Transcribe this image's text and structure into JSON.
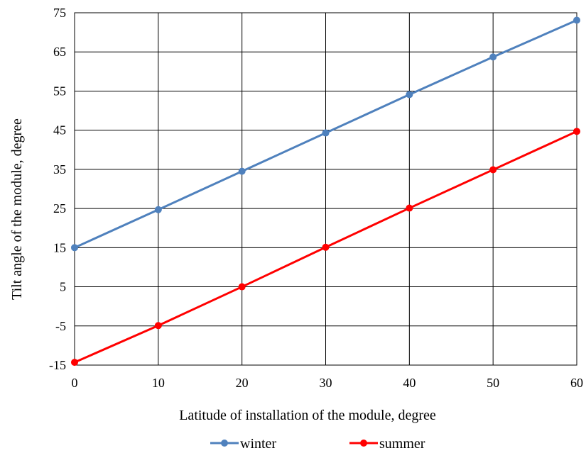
{
  "chart_data": {
    "type": "line",
    "title": "",
    "xlabel": "Latitude of installation of the module, degree",
    "ylabel": "Tilt angle of the module, degree",
    "xlim": [
      0,
      60
    ],
    "ylim": [
      -15,
      75
    ],
    "xticks": [
      "0",
      "10",
      "20",
      "30",
      "40",
      "50",
      "60"
    ],
    "yticks": [
      "-15",
      "-5",
      "5",
      "15",
      "25",
      "35",
      "45",
      "55",
      "65",
      "75"
    ],
    "grid": true,
    "legend_position": "bottom",
    "x": [
      0,
      10,
      20,
      30,
      40,
      50,
      60
    ],
    "series": [
      {
        "name": "winter",
        "color": "#4f81bd",
        "values": [
          15,
          24.7,
          34.5,
          44.3,
          54.1,
          63.7,
          73.1
        ]
      },
      {
        "name": "summer",
        "color": "#ff0000",
        "values": [
          -14.3,
          -4.9,
          5,
          15.1,
          25.1,
          34.9,
          44.7
        ]
      }
    ]
  }
}
